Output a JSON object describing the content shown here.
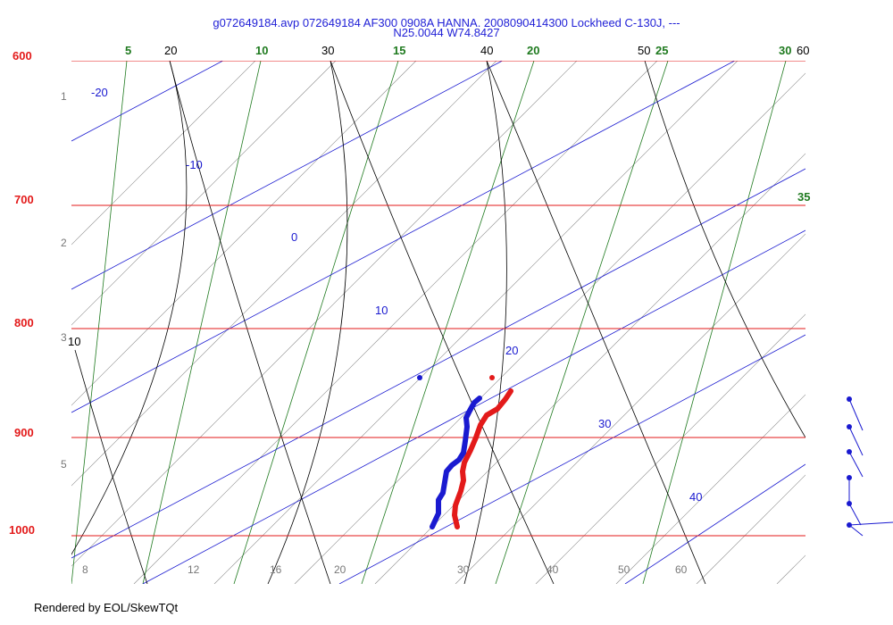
{
  "chart_data": {
    "type": "skew-t",
    "title": "g072649184.avp 072649184 AF300 0908A HANNA. 2008090414300 Lockheed C-130J, ---",
    "subtitle": "N25.0044 W74.8427",
    "footer": "Rendered by EOL/SkewTQt",
    "pressure_ticks": [
      600,
      700,
      800,
      900,
      1000
    ],
    "bottom_temperature_ticks": [
      8,
      12,
      16,
      20,
      30,
      40,
      50,
      60
    ],
    "left_height_ticks": [
      1,
      2,
      3,
      5
    ],
    "mixing_ratio_labels": [
      "5",
      "10",
      "15",
      "20",
      "25",
      "30",
      "35"
    ],
    "black_line_labels": [
      "10",
      "20",
      "30",
      "40",
      "50",
      "60"
    ],
    "blue_line_labels": [
      "-20",
      "-10",
      "0",
      "10",
      "20",
      "30",
      "40"
    ],
    "series": [
      {
        "color": "#e31a1a",
        "points": [
          [
            572,
            438
          ],
          [
            566,
            447
          ],
          [
            557,
            458
          ],
          [
            545,
            465
          ],
          [
            538,
            476
          ],
          [
            533,
            490
          ],
          [
            527,
            504
          ],
          [
            520,
            518
          ],
          [
            518,
            528
          ],
          [
            519,
            538
          ],
          [
            516,
            550
          ],
          [
            510,
            566
          ],
          [
            509,
            577
          ],
          [
            512,
            590
          ]
        ]
      },
      {
        "color": "#1a1ad0",
        "points": [
          [
            537,
            446
          ],
          [
            531,
            451
          ],
          [
            526,
            460
          ],
          [
            522,
            468
          ],
          [
            523,
            478
          ],
          [
            521,
            494
          ],
          [
            519,
            507
          ],
          [
            514,
            515
          ],
          [
            506,
            521
          ],
          [
            500,
            528
          ],
          [
            498,
            540
          ],
          [
            496,
            552
          ],
          [
            491,
            560
          ],
          [
            491,
            575
          ],
          [
            484,
            590
          ]
        ]
      }
    ],
    "extra_points": [
      {
        "color": "#e31a1a",
        "point": [
          551,
          423
        ]
      },
      {
        "color": "#1a1ad0",
        "point": [
          470,
          423
        ]
      }
    ],
    "wind_barbs": [
      {
        "point": [
          951,
          447
        ]
      },
      {
        "point": [
          951,
          478
        ]
      },
      {
        "point": [
          951,
          506
        ]
      },
      {
        "point": [
          951,
          535
        ]
      },
      {
        "point": [
          951,
          564
        ]
      },
      {
        "point": [
          951,
          588
        ]
      }
    ],
    "colors": {
      "isobar": "#e31a1a",
      "mixing_ratio": "#1f7a1f",
      "black_lines": "#000000",
      "blue_lines": "#1a1ad0",
      "gray_lines": "#8a8a8a"
    }
  }
}
